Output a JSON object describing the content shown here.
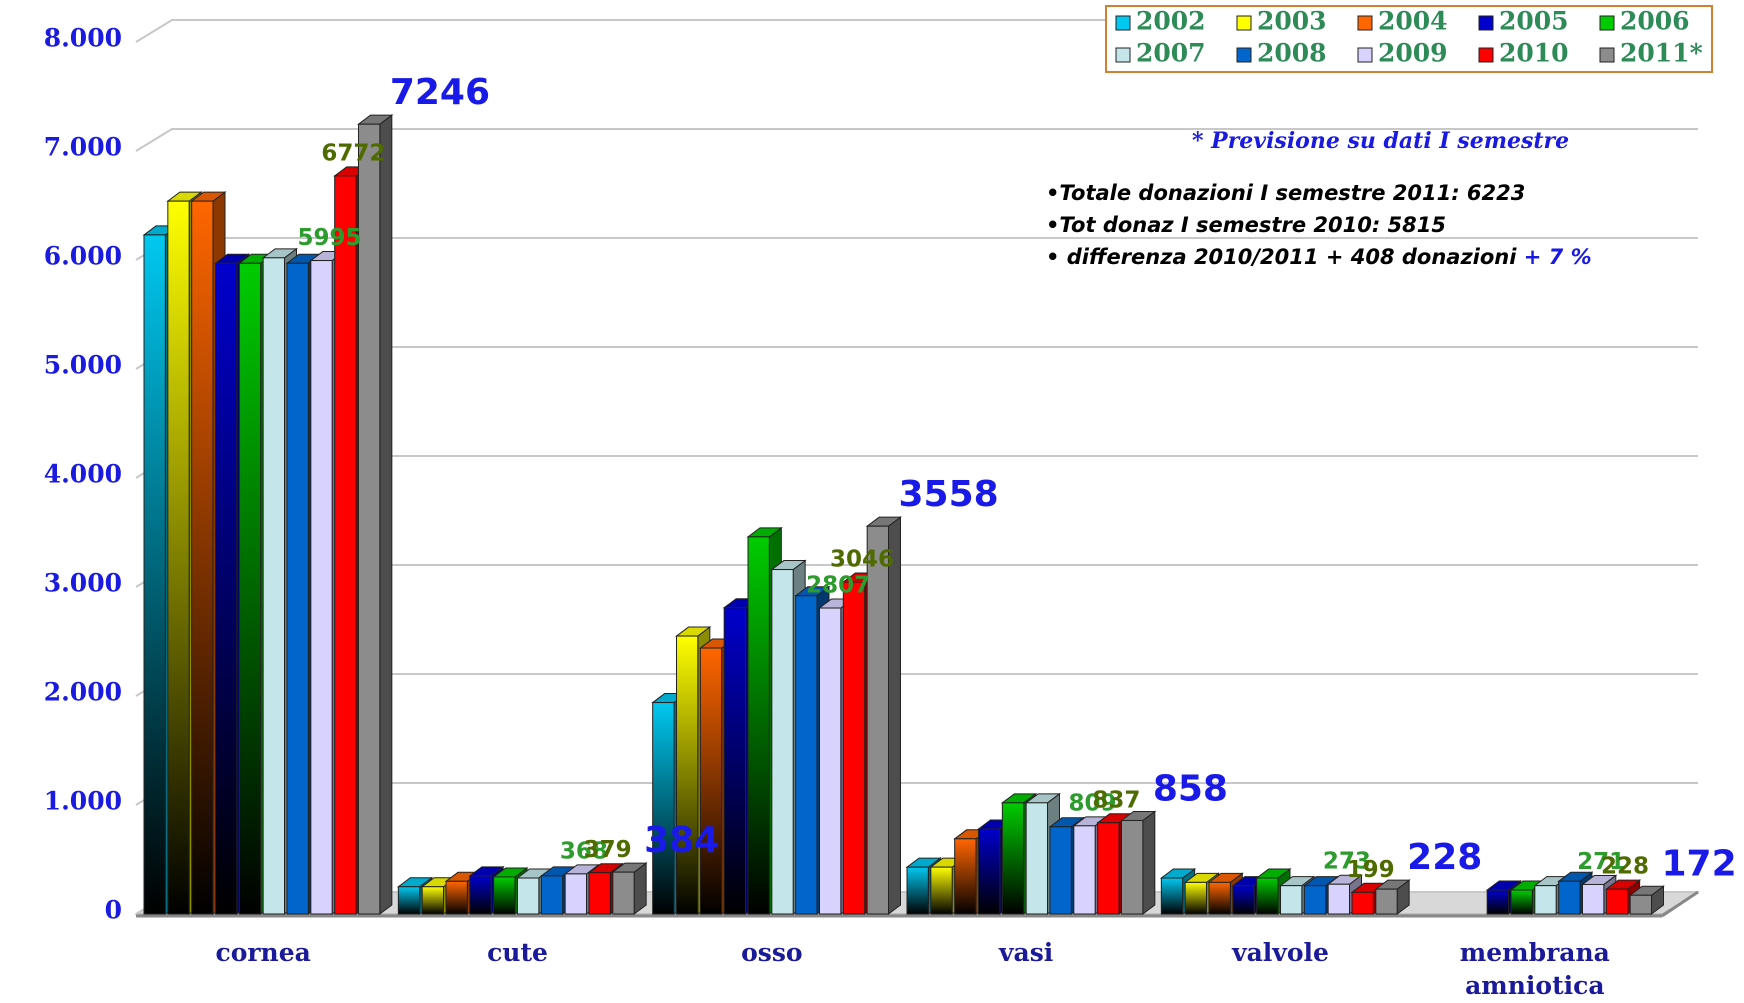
{
  "chart_data": {
    "type": "bar3d",
    "categories": [
      "cornea",
      "cute",
      "osso",
      "vasi",
      "valvole",
      "membrana amniotica"
    ],
    "ylim": [
      0,
      8000
    ],
    "yticks": [
      0,
      {
        "value": 1000,
        "label": "1.000"
      },
      {
        "value": 2000,
        "label": "2.000"
      },
      {
        "value": 3000,
        "label": "3.000"
      },
      {
        "value": 4000,
        "label": "4.000"
      },
      {
        "value": 5000,
        "label": "5.000"
      },
      {
        "value": 6000,
        "label": "6.000"
      },
      {
        "value": 7000,
        "label": "7.000"
      },
      {
        "value": 8000,
        "label": "8.000"
      }
    ],
    "grid": true,
    "legend": "top-right",
    "series": [
      {
        "name": "2002",
        "color": "#00c8f0",
        "gradient": true,
        "values": [
          6230,
          250,
          1940,
          430,
          330,
          null
        ]
      },
      {
        "name": "2003",
        "color": "#ffff00",
        "gradient": true,
        "values": [
          6540,
          250,
          2550,
          430,
          290,
          null
        ]
      },
      {
        "name": "2004",
        "color": "#ff6600",
        "gradient": true,
        "values": [
          6540,
          300,
          2440,
          690,
          290,
          null
        ]
      },
      {
        "name": "2005",
        "color": "#0000cc",
        "gradient": true,
        "values": [
          5970,
          350,
          2810,
          780,
          260,
          220
        ]
      },
      {
        "name": "2006",
        "color": "#00cc00",
        "gradient": true,
        "values": [
          5970,
          340,
          3460,
          1020,
          330,
          220
        ]
      },
      {
        "name": "2007",
        "color": "#c4e6ea",
        "gradient": false,
        "values": [
          6020,
          330,
          3160,
          1020,
          260,
          260
        ]
      },
      {
        "name": "2008",
        "color": "#0066cc",
        "gradient": false,
        "values": [
          5970,
          350,
          2920,
          800,
          260,
          300
        ]
      },
      {
        "name": "2009",
        "color": "#d8d2ff",
        "gradient": false,
        "label_color": "#2e9b2e",
        "values": [
          5995,
          368,
          2807,
          809,
          273,
          271
        ],
        "value_labels": [
          "5995",
          "368",
          "2807",
          "809",
          "273",
          "271"
        ]
      },
      {
        "name": "2010",
        "color": "#ff0000",
        "gradient": false,
        "label_color": "#4f6b00",
        "values": [
          6772,
          379,
          3046,
          837,
          199,
          228
        ],
        "value_labels": [
          "6772",
          "379",
          "3046",
          "837",
          "199",
          "228"
        ]
      },
      {
        "name": "2011*",
        "color": "#8c8c8c",
        "gradient": false,
        "label_color": "#1a1ae8",
        "big_labels": true,
        "values": [
          7246,
          384,
          3558,
          858,
          228,
          172
        ],
        "value_labels": [
          "7246",
          "384",
          "3558",
          "858",
          "228",
          "172"
        ]
      }
    ],
    "footnote": "* Previsione su dati I semestre",
    "notes": [
      {
        "text": "•Totale donazioni I semestre 2011: 6223"
      },
      {
        "text": "•Tot donaz I semestre 2010: 5815"
      },
      {
        "text": "• differenza 2010/2011 + 408 donazioni",
        "highlight": "+ 7 %"
      }
    ]
  }
}
